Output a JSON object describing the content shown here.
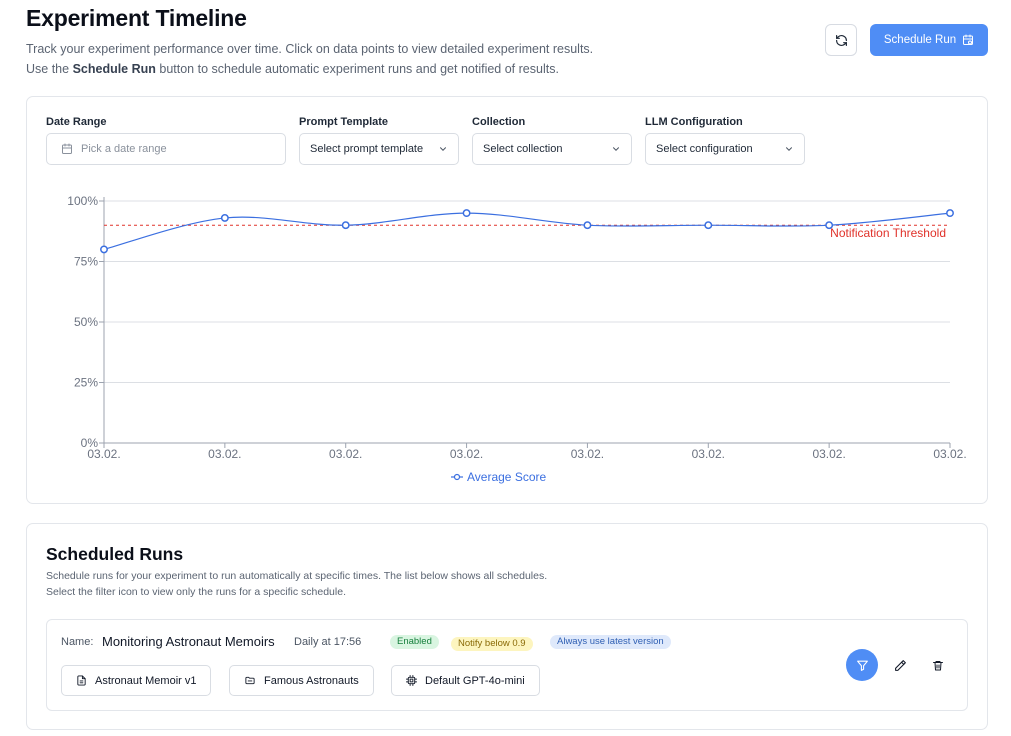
{
  "header": {
    "title": "Experiment Timeline",
    "subtitle_line1": "Track your experiment performance over time. Click on data points to view detailed experiment results.",
    "subtitle_line2_pre": "Use the ",
    "subtitle_line2_bold": "Schedule Run",
    "subtitle_line2_post": " button to schedule automatic experiment runs and get notified of results.",
    "refresh_icon": "refresh-icon",
    "schedule_button_label": "Schedule Run",
    "schedule_button_icon": "calendar-clock-icon"
  },
  "filters": {
    "date_range": {
      "label": "Date Range",
      "placeholder": "Pick a date range"
    },
    "prompt_template": {
      "label": "Prompt Template",
      "value": "Select prompt template"
    },
    "collection": {
      "label": "Collection",
      "value": "Select collection"
    },
    "llm_configuration": {
      "label": "LLM Configuration",
      "value": "Select configuration"
    }
  },
  "chart_data": {
    "type": "line",
    "x": [
      "03.02.",
      "03.02.",
      "03.02.",
      "03.02.",
      "03.02.",
      "03.02.",
      "03.02.",
      "03.02."
    ],
    "series": [
      {
        "name": "Average Score",
        "values": [
          80,
          93,
          90,
          95,
          90,
          90,
          90,
          95
        ],
        "color": "#3b6fe0"
      }
    ],
    "ylim": [
      0,
      100
    ],
    "yticks": [
      "0%",
      "25%",
      "50%",
      "75%",
      "100%"
    ],
    "threshold": {
      "value": 90,
      "label": "Notification Threshold",
      "color": "#e0322a"
    },
    "grid": true,
    "legend_position": "bottom"
  },
  "scheduled_runs": {
    "title": "Scheduled Runs",
    "subtitle_line1": "Schedule runs for your experiment to run automatically at specific times. The list below shows all schedules.",
    "subtitle_line2": "Select the filter icon to view only the runs for a specific schedule.",
    "items": [
      {
        "name_label": "Name:",
        "name": "Monitoring Astronaut Memoirs",
        "schedule": "Daily at 17:56",
        "badges": {
          "enabled": "Enabled",
          "notify": "Notify below 0.9",
          "version": "Always use latest version"
        },
        "prompt": "Astronaut Memoir v1",
        "collection": "Famous Astronauts",
        "config": "Default GPT-4o-mini"
      }
    ]
  }
}
